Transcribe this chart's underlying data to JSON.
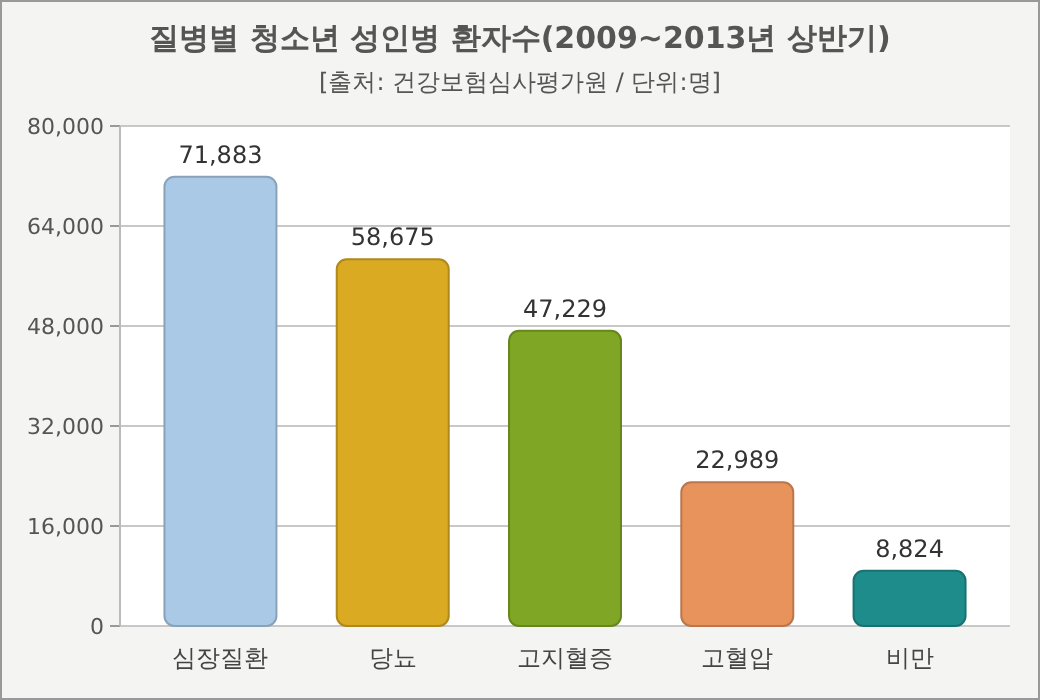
{
  "chart_data": {
    "type": "bar",
    "title": "질병별 청소년 성인병 환자수(2009~2013년 상반기)",
    "subtitle": "[출처: 건강보험심사평가원 / 단위:명]",
    "categories": [
      "심장질환",
      "당뇨",
      "고지혈증",
      "고혈압",
      "비만"
    ],
    "values": [
      71883,
      58675,
      47229,
      22989,
      8824
    ],
    "value_labels": [
      "71,883",
      "58,675",
      "47,229",
      "22,989",
      "8,824"
    ],
    "colors": [
      "#a9c9e6",
      "#d9aa22",
      "#7fa624",
      "#e8925c",
      "#1f8c8c"
    ],
    "ylim": [
      0,
      80000
    ],
    "yticks": [
      0,
      {
        "value": 16000,
        "label": "16,000"
      },
      {
        "value": 32000,
        "label": "32,000"
      },
      {
        "value": 48000,
        "label": "48,000"
      },
      {
        "value": 64000,
        "label": "64,000"
      },
      {
        "value": 80000,
        "label": "80,000"
      }
    ],
    "grid": "y"
  }
}
